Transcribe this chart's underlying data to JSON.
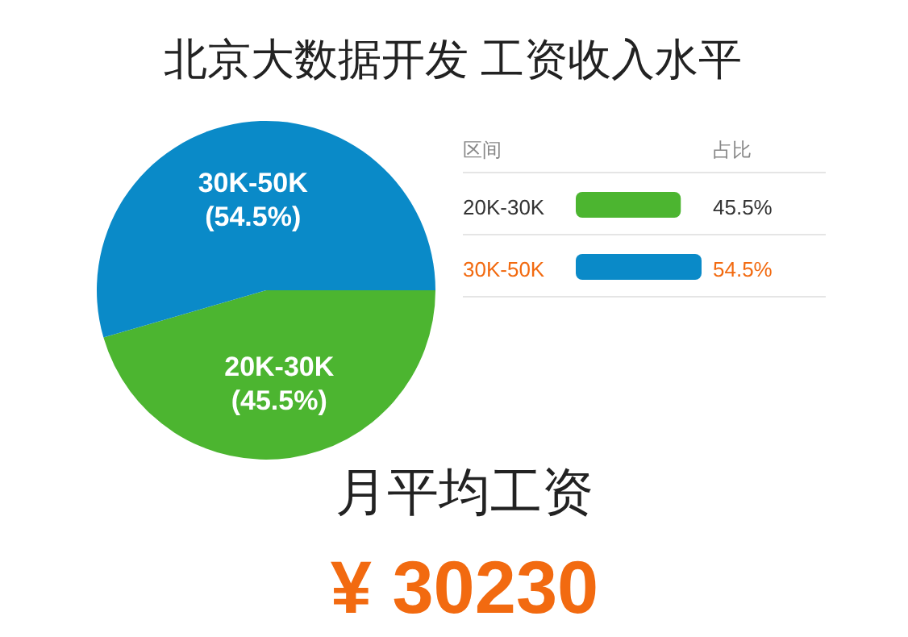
{
  "chart_data": [
    {
      "type": "pie",
      "title": "北京大数据开发 工资收入水平",
      "categories": [
        "20K-30K",
        "30K-50K"
      ],
      "values": [
        45.5,
        54.5
      ],
      "colors": [
        "#4cb530",
        "#0a8ac8"
      ],
      "value_labels": [
        "(45.5%)",
        "(54.5%)"
      ]
    },
    {
      "type": "bar",
      "orientation": "horizontal",
      "categories": [
        "20K-30K",
        "30K-50K"
      ],
      "values": [
        45.5,
        54.5
      ],
      "colors": [
        "#4cb530",
        "#0a8ac8"
      ],
      "value_labels": [
        "45.5%",
        "54.5%"
      ],
      "annotations": [
        "区间",
        "占比"
      ]
    },
    {
      "type": "other",
      "title": "月平均工资",
      "annotations": [
        "¥ 30230"
      ]
    }
  ]
}
